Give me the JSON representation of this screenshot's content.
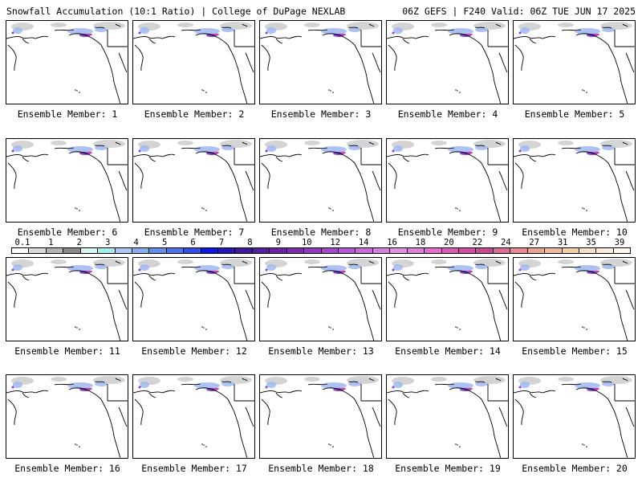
{
  "header": {
    "title_left": "Snowfall Accumulation (10:1 Ratio) | College of DuPage NEXLAB",
    "title_right": "06Z GEFS | F240 Valid: 06Z TUE JUN 17 2025"
  },
  "panels": [
    {
      "label": "Ensemble Member: 1"
    },
    {
      "label": "Ensemble Member: 2"
    },
    {
      "label": "Ensemble Member: 3"
    },
    {
      "label": "Ensemble Member: 4"
    },
    {
      "label": "Ensemble Member: 5"
    },
    {
      "label": "Ensemble Member: 6"
    },
    {
      "label": "Ensemble Member: 7"
    },
    {
      "label": "Ensemble Member: 8"
    },
    {
      "label": "Ensemble Member: 9"
    },
    {
      "label": "Ensemble Member: 10"
    },
    {
      "label": "Ensemble Member: 11"
    },
    {
      "label": "Ensemble Member: 12"
    },
    {
      "label": "Ensemble Member: 13"
    },
    {
      "label": "Ensemble Member: 14"
    },
    {
      "label": "Ensemble Member: 15"
    },
    {
      "label": "Ensemble Member: 16"
    },
    {
      "label": "Ensemble Member: 17"
    },
    {
      "label": "Ensemble Member: 18"
    },
    {
      "label": "Ensemble Member: 19"
    },
    {
      "label": "Ensemble Member: 20"
    }
  ],
  "colorbar": {
    "labels": [
      "0.1",
      "1",
      "2",
      "3",
      "4",
      "5",
      "6",
      "7",
      "8",
      "9",
      "10",
      "12",
      "14",
      "16",
      "18",
      "20",
      "22",
      "24",
      "27",
      "31",
      "35",
      "39"
    ],
    "colors": [
      "#ffffff",
      "#d9d9d9",
      "#b3b3b3",
      "#8c8c8c",
      "#d6f5f5",
      "#9ff0f0",
      "#a9c8f5",
      "#86acf0",
      "#6090ea",
      "#4f74ec",
      "#2f4fe8",
      "#0a18e6",
      "#2c15b5",
      "#3e169f",
      "#56199f",
      "#6b1fa8",
      "#7f2bb5",
      "#9238c2",
      "#a645ce",
      "#b856d8",
      "#c86adf",
      "#d57fe3",
      "#e08fe3",
      "#e27ed5",
      "#e26dc7",
      "#db5cb6",
      "#d44ea5",
      "#ca4896",
      "#d86d95",
      "#e3898f",
      "#eca48f",
      "#f0bb98",
      "#f4cfa8",
      "#f8e0c0",
      "#fbeed8",
      "#fff8ec"
    ]
  }
}
